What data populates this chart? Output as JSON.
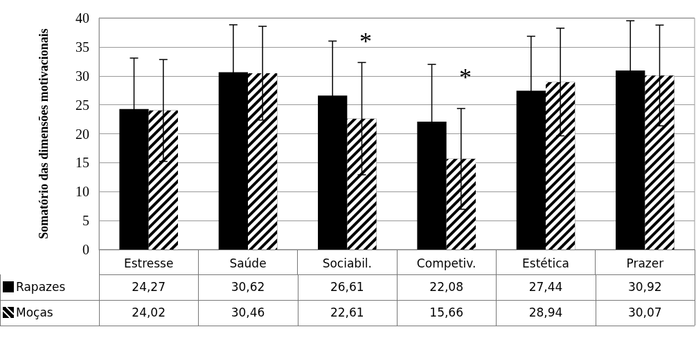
{
  "chart_data": {
    "type": "bar",
    "ylabel": "Somatório das dimensões motivacionais",
    "categories": [
      "Estresse",
      "Saúde",
      "Sociabil.",
      "Competiv.",
      "Estética",
      "Prazer"
    ],
    "series": [
      {
        "name": "Rapazes",
        "color": "#000000",
        "values": [
          24.27,
          30.62,
          26.61,
          22.08,
          27.44,
          30.92
        ],
        "value_labels": [
          "24,27",
          "30,62",
          "26,61",
          "22,08",
          "27,44",
          "30,92"
        ],
        "errors": [
          8.8,
          8.2,
          9.4,
          9.9,
          9.4,
          8.6
        ]
      },
      {
        "name": "Moças",
        "color": "#000000",
        "values": [
          24.02,
          30.46,
          22.61,
          15.66,
          28.94,
          30.07
        ],
        "value_labels": [
          "24,02",
          "30,46",
          "22,61",
          "15,66",
          "28,94",
          "30,07"
        ],
        "errors": [
          8.8,
          8.1,
          9.7,
          8.7,
          9.3,
          8.7
        ]
      }
    ],
    "annotations": [
      "*",
      "*"
    ],
    "ylim": [
      0,
      40
    ],
    "yticks": [
      0,
      5,
      10,
      15,
      20,
      25,
      30,
      35,
      40
    ],
    "grid": "y",
    "legend": "bottom"
  }
}
